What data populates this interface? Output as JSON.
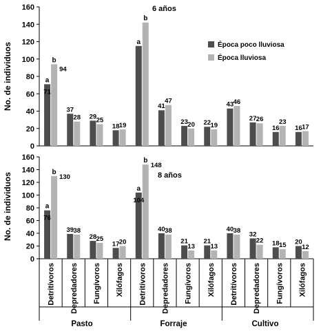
{
  "colors": {
    "dry": "#4d4d4d",
    "wet": "#b3b3b3",
    "axis": "#000000"
  },
  "legend": {
    "dry_label": "Época poco lluviosa",
    "wet_label": "Época lluviosa"
  },
  "groups": [
    "Pasto",
    "Forraje",
    "Cultivo"
  ],
  "chart_data": [
    {
      "type": "bar",
      "title": "6 años",
      "ylabel": "No. de individuos",
      "ylim": [
        0,
        160
      ],
      "yticks": [
        0,
        20,
        40,
        60,
        80,
        100,
        120,
        140,
        160
      ],
      "categories": [
        "Detritívoros",
        "Depredadores",
        "Fungívoros",
        "Xilófagos",
        "Detritívoros",
        "Depredadores",
        "Fungívoros",
        "Xilófagos",
        "Detritívoros",
        "Depredadores",
        "Fungívoros",
        "Xilófagos"
      ],
      "series": [
        {
          "name": "Época poco lluviosa",
          "values": [
            71,
            37,
            29,
            18,
            115,
            41,
            23,
            22,
            43,
            27,
            16,
            16
          ]
        },
        {
          "name": "Época lluviosa",
          "values": [
            94,
            28,
            25,
            19,
            142,
            47,
            20,
            19,
            46,
            26,
            23,
            17
          ]
        }
      ],
      "value_labels": [
        [
          "71",
          "37",
          "29",
          "18",
          "",
          "41",
          "23",
          "22",
          "43",
          "27",
          "16",
          "16"
        ],
        [
          "94",
          "28",
          "25",
          "19",
          "",
          "47",
          "20",
          "19",
          "46",
          "26",
          "23",
          "17"
        ]
      ],
      "significance": [
        [
          "a",
          "",
          "",
          "",
          "a",
          "",
          "",
          "",
          "",
          "",
          "",
          ""
        ],
        [
          "b",
          "",
          "",
          "",
          "b",
          "",
          "",
          "",
          "",
          "",
          "",
          ""
        ]
      ]
    },
    {
      "type": "bar",
      "title": "8 años",
      "ylabel": "No. de individuos",
      "ylim": [
        0,
        160
      ],
      "yticks": [
        0,
        20,
        40,
        60,
        80,
        100,
        120,
        140,
        160
      ],
      "categories": [
        "Detritívoros",
        "Depredadores",
        "Fungívoros",
        "Xilófagos",
        "Detritívoros",
        "Depredadores",
        "Fungívoros",
        "Xilófagos",
        "Detritívoros",
        "Depredadores",
        "Fungívoros",
        "Xilófagos"
      ],
      "series": [
        {
          "name": "Época poco lluviosa",
          "values": [
            76,
            39,
            28,
            17,
            104,
            40,
            21,
            21,
            40,
            32,
            18,
            20
          ]
        },
        {
          "name": "Época lluviosa",
          "values": [
            130,
            38,
            25,
            20,
            148,
            38,
            13,
            13,
            38,
            22,
            15,
            12
          ]
        }
      ],
      "value_labels": [
        [
          "76",
          "39",
          "28",
          "17",
          "104",
          "40",
          "21",
          "21",
          "40",
          "32",
          "18",
          "20"
        ],
        [
          "130",
          "38",
          "25",
          "20",
          "148",
          "38",
          "13",
          "13",
          "38",
          "22",
          "15",
          "12"
        ]
      ],
      "significance": [
        [
          "a",
          "",
          "",
          "",
          "a",
          "",
          "",
          "",
          "",
          "",
          "",
          ""
        ],
        [
          "b",
          "",
          "",
          "",
          "b",
          "",
          "",
          "",
          "",
          "",
          "",
          ""
        ]
      ]
    }
  ]
}
